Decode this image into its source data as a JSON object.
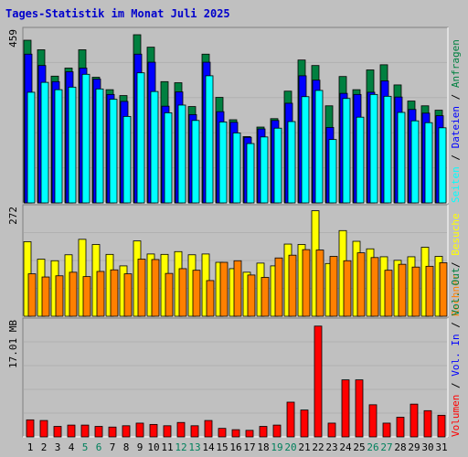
{
  "chart_data": [
    {
      "type": "bar",
      "panel": "top",
      "title": "Tages-Statistik im Monat Juli 2025",
      "ylabel_value": "459",
      "ylim": [
        0,
        459
      ],
      "grid": true,
      "categories": [
        "1",
        "2",
        "3",
        "4",
        "5",
        "6",
        "7",
        "8",
        "9",
        "10",
        "11",
        "12",
        "13",
        "14",
        "15",
        "16",
        "17",
        "18",
        "19",
        "20",
        "21",
        "22",
        "23",
        "24",
        "25",
        "26",
        "27",
        "28",
        "29",
        "30",
        "31"
      ],
      "series": [
        {
          "name": "Anfragen",
          "color": "#008040",
          "values": [
            444,
            418,
            346,
            368,
            418,
            343,
            309,
            293,
            459,
            425,
            331,
            328,
            263,
            406,
            288,
            227,
            181,
            207,
            230,
            305,
            390,
            375,
            265,
            345,
            309,
            363,
            377,
            322,
            278,
            265,
            253
          ]
        },
        {
          "name": "Dateien",
          "color": "#0000ff",
          "values": [
            406,
            375,
            331,
            358,
            368,
            338,
            296,
            277,
            406,
            384,
            264,
            303,
            241,
            384,
            249,
            220,
            179,
            202,
            225,
            272,
            347,
            335,
            206,
            299,
            296,
            302,
            333,
            289,
            255,
            245,
            238
          ]
        },
        {
          "name": "Seiten",
          "color": "#00ffff",
          "values": [
            302,
            329,
            309,
            316,
            351,
            311,
            283,
            236,
            355,
            304,
            246,
            267,
            225,
            347,
            221,
            191,
            162,
            180,
            204,
            222,
            290,
            307,
            173,
            285,
            234,
            296,
            291,
            247,
            224,
            219,
            205
          ]
        }
      ],
      "legend": [
        {
          "label": "Anfragen",
          "color": "#008040"
        },
        {
          "label": "Dateien",
          "color": "#0000ff"
        },
        {
          "label": "Seiten",
          "color": "#00ffff"
        }
      ]
    },
    {
      "type": "bar",
      "panel": "middle",
      "ylabel_value": "272",
      "ylim": [
        0,
        272
      ],
      "grid": true,
      "series": [
        {
          "name": "Besuche",
          "color": "#ffff00",
          "values": [
            188,
            144,
            140,
            155,
            194,
            181,
            156,
            127,
            190,
            157,
            156,
            163,
            155,
            157,
            136,
            120,
            111,
            134,
            127,
            182,
            181,
            266,
            133,
            216,
            189,
            170,
            150,
            141,
            150,
            174,
            151
          ]
        },
        {
          "name": "Rechner",
          "color": "#ff8000",
          "values": [
            107,
            99,
            102,
            111,
            100,
            113,
            117,
            107,
            144,
            143,
            108,
            120,
            116,
            90,
            136,
            140,
            104,
            98,
            147,
            154,
            168,
            167,
            151,
            140,
            160,
            148,
            116,
            131,
            124,
            126,
            135
          ]
        }
      ],
      "legend": [
        {
          "label": "Besuche",
          "color": "#ffff00"
        },
        {
          "label": "Rechner",
          "color": "#ff8000"
        }
      ]
    },
    {
      "type": "bar",
      "panel": "bottom",
      "ylabel_value": "17.01 MB",
      "ylim": [
        0,
        17.01
      ],
      "grid": true,
      "series": [
        {
          "name": "Volumen",
          "color": "#ff0000",
          "values": [
            2.6,
            2.5,
            1.6,
            1.8,
            1.8,
            1.6,
            1.5,
            1.7,
            2.1,
            1.9,
            1.7,
            2.2,
            1.7,
            2.5,
            1.3,
            1.1,
            1.0,
            1.6,
            1.8,
            5.3,
            4.1,
            16.9,
            2.1,
            8.7,
            8.7,
            4.9,
            2.1,
            3.0,
            5.0,
            4.0,
            3.3
          ]
        }
      ],
      "legend": [
        {
          "label": "Volumen",
          "color": "#ff0000"
        },
        {
          "label": "Vol. In",
          "color": "#0000ff"
        },
        {
          "label": "Vol. Out",
          "color": "#008040"
        }
      ]
    }
  ],
  "weekend_days": [
    "5",
    "6",
    "12",
    "13",
    "19",
    "20",
    "26",
    "27"
  ],
  "colors": {
    "background": "#c0c0c0",
    "weekday_label": "#000000",
    "weekend_label": "#00805c",
    "title": "#0000cc",
    "grid": "#b0b0b0"
  }
}
